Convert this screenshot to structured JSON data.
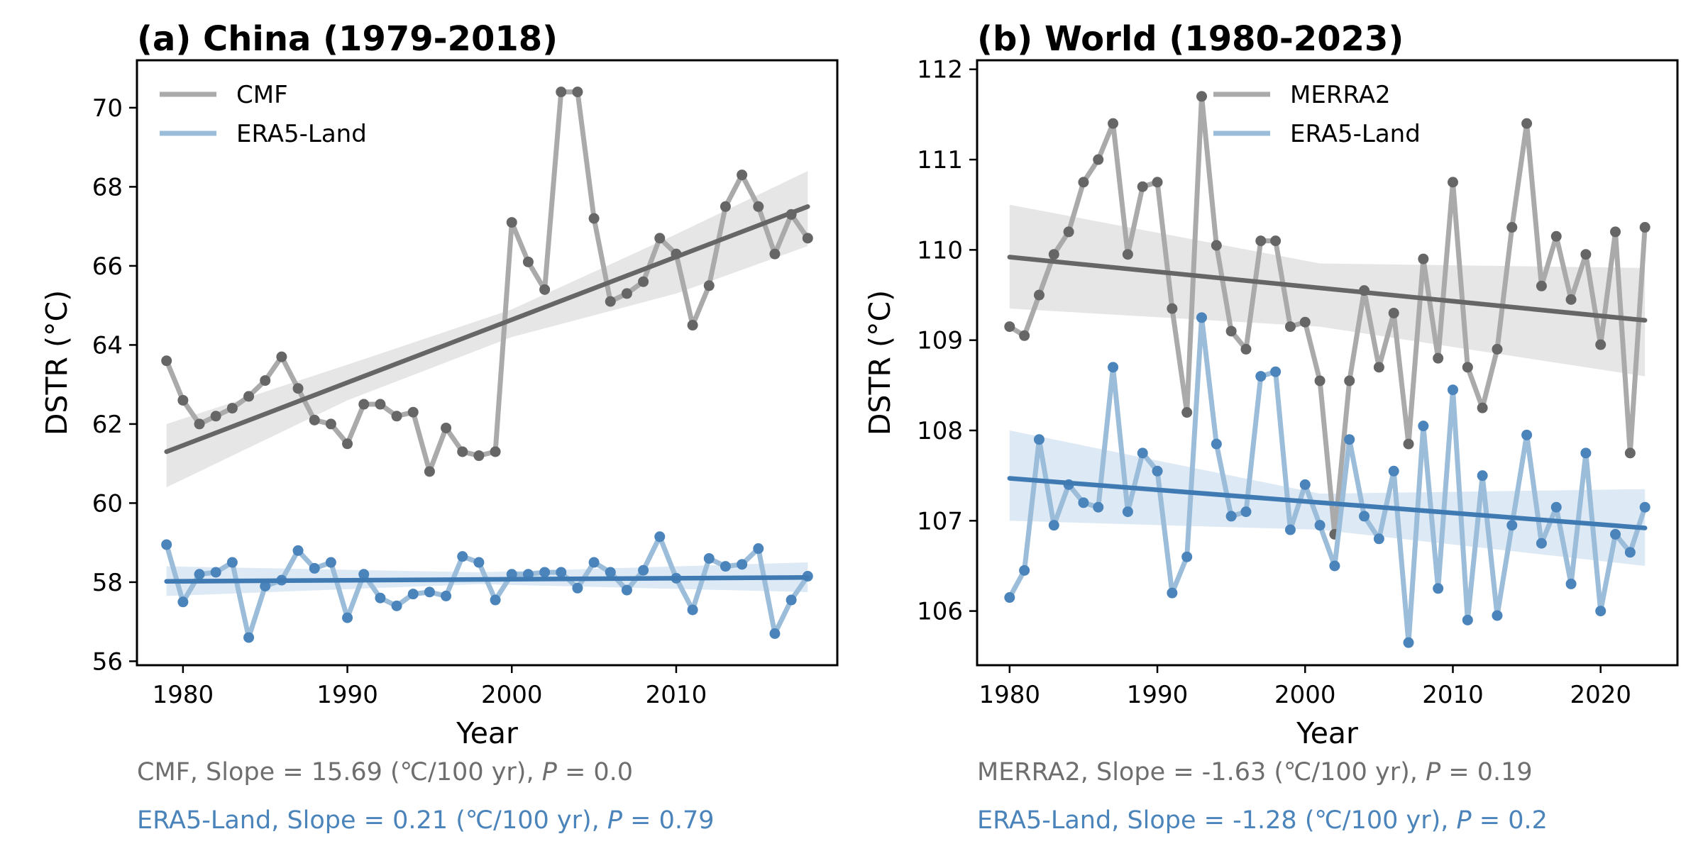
{
  "colors": {
    "cmf_line": "#aaaaaa",
    "cmf_dot": "#666666",
    "cmf_trend": "#666666",
    "band_gray": "#e6e6e6",
    "era_line": "#9bbdda",
    "era_dot": "#4a84bb",
    "era_trend": "#3f7ab3",
    "band_blue": "#dde9f4",
    "stat_gray": "#6e6e6e",
    "stat_blue": "#4a84bb"
  },
  "chart_data": [
    {
      "type": "line",
      "title": "(a) China (1979-2018)",
      "xlabel": "Year",
      "ylabel": "DSTR (°C)",
      "xlim": [
        1977.2,
        2019.8
      ],
      "ylim": [
        55.9,
        71.2
      ],
      "xticks": [
        1980,
        1990,
        2000,
        2010
      ],
      "yticks": [
        56,
        58,
        60,
        62,
        64,
        66,
        68,
        70
      ],
      "legend_position": "top-left",
      "series": [
        {
          "name": "CMF",
          "color_key": "cmf",
          "x": [
            1979,
            1980,
            1981,
            1982,
            1983,
            1984,
            1985,
            1986,
            1987,
            1988,
            1989,
            1990,
            1991,
            1992,
            1993,
            1994,
            1995,
            1996,
            1997,
            1998,
            1999,
            2000,
            2001,
            2002,
            2003,
            2004,
            2005,
            2006,
            2007,
            2008,
            2009,
            2010,
            2011,
            2012,
            2013,
            2014,
            2015,
            2016,
            2017,
            2018
          ],
          "y": [
            63.6,
            62.6,
            62.0,
            62.2,
            62.4,
            62.7,
            63.1,
            63.7,
            62.9,
            62.1,
            62.0,
            61.5,
            62.5,
            62.5,
            62.2,
            62.3,
            60.8,
            61.9,
            61.3,
            61.2,
            61.3,
            67.1,
            66.1,
            65.4,
            70.4,
            70.4,
            67.2,
            65.1,
            65.3,
            65.6,
            66.7,
            66.3,
            64.5,
            65.5,
            67.5,
            68.3,
            67.5,
            66.3,
            67.3,
            66.7
          ],
          "trend": {
            "x": [
              1979,
              2018
            ],
            "y": [
              61.3,
              67.5
            ]
          },
          "band": {
            "x": [
              1979,
              1990,
              2000,
              2010,
              2018
            ],
            "upper": [
              62.0,
              63.5,
              64.9,
              66.8,
              68.4
            ],
            "lower": [
              60.4,
              62.6,
              64.2,
              65.3,
              66.5
            ]
          }
        },
        {
          "name": "ERA5-Land",
          "color_key": "era",
          "x": [
            1979,
            1980,
            1981,
            1982,
            1983,
            1984,
            1985,
            1986,
            1987,
            1988,
            1989,
            1990,
            1991,
            1992,
            1993,
            1994,
            1995,
            1996,
            1997,
            1998,
            1999,
            2000,
            2001,
            2002,
            2003,
            2004,
            2005,
            2006,
            2007,
            2008,
            2009,
            2010,
            2011,
            2012,
            2013,
            2014,
            2015,
            2016,
            2017,
            2018
          ],
          "y": [
            58.95,
            57.5,
            58.2,
            58.25,
            58.5,
            56.6,
            57.9,
            58.05,
            58.8,
            58.35,
            58.5,
            57.1,
            58.2,
            57.6,
            57.4,
            57.7,
            57.75,
            57.65,
            58.65,
            58.5,
            57.55,
            58.2,
            58.2,
            58.25,
            58.25,
            57.85,
            58.5,
            58.25,
            57.8,
            58.3,
            59.15,
            58.1,
            57.3,
            58.6,
            58.4,
            58.45,
            58.85,
            56.7,
            57.55,
            58.15
          ],
          "trend": {
            "x": [
              1979,
              2018
            ],
            "y": [
              58.02,
              58.12
            ]
          },
          "band": {
            "x": [
              1979,
              1998,
              2018
            ],
            "upper": [
              58.4,
              58.25,
              58.5
            ],
            "lower": [
              57.65,
              57.95,
              57.75
            ]
          }
        }
      ],
      "stats": [
        {
          "series": "CMF",
          "text": "CMF, Slope = 15.69 (℃/100 yr), ",
          "p_label": "P",
          "p_text": " = 0.0"
        },
        {
          "series": "ERA5-Land",
          "text": "ERA5-Land, Slope = 0.21 (℃/100 yr), ",
          "p_label": "P",
          "p_text": " = 0.79"
        }
      ]
    },
    {
      "type": "line",
      "title": "(b) World (1980-2023)",
      "xlabel": "Year",
      "ylabel": "DSTR (°C)",
      "xlim": [
        1977.8,
        2025.2
      ],
      "ylim": [
        105.4,
        112.1
      ],
      "xticks": [
        1980,
        1990,
        2000,
        2010,
        2020
      ],
      "yticks": [
        106,
        107,
        108,
        109,
        110,
        111,
        112
      ],
      "legend_position": "top-center",
      "series": [
        {
          "name": "MERRA2",
          "color_key": "cmf",
          "x": [
            1980,
            1981,
            1982,
            1983,
            1984,
            1985,
            1986,
            1987,
            1988,
            1989,
            1990,
            1991,
            1992,
            1993,
            1994,
            1995,
            1996,
            1997,
            1998,
            1999,
            2000,
            2001,
            2002,
            2003,
            2004,
            2005,
            2006,
            2007,
            2008,
            2009,
            2010,
            2011,
            2012,
            2013,
            2014,
            2015,
            2016,
            2017,
            2018,
            2019,
            2020,
            2021,
            2022,
            2023
          ],
          "y": [
            109.15,
            109.05,
            109.5,
            109.95,
            110.2,
            110.75,
            111.0,
            111.4,
            109.95,
            110.7,
            110.75,
            109.35,
            108.2,
            111.7,
            110.05,
            109.1,
            108.9,
            110.1,
            110.1,
            109.15,
            109.2,
            108.55,
            106.85,
            108.55,
            109.55,
            108.7,
            109.3,
            107.85,
            109.9,
            108.8,
            110.75,
            108.7,
            108.25,
            108.9,
            110.25,
            111.4,
            109.6,
            110.15,
            109.45,
            109.95,
            108.95,
            110.2,
            107.75,
            110.25
          ],
          "trend": {
            "x": [
              1980,
              2023
            ],
            "y": [
              109.92,
              109.22
            ]
          },
          "band": {
            "x": [
              1980,
              2001,
              2023
            ],
            "upper": [
              110.5,
              109.85,
              109.8
            ],
            "lower": [
              109.35,
              109.15,
              108.6
            ]
          }
        },
        {
          "name": "ERA5-Land",
          "color_key": "era",
          "x": [
            1980,
            1981,
            1982,
            1983,
            1984,
            1985,
            1986,
            1987,
            1988,
            1989,
            1990,
            1991,
            1992,
            1993,
            1994,
            1995,
            1996,
            1997,
            1998,
            1999,
            2000,
            2001,
            2002,
            2003,
            2004,
            2005,
            2006,
            2007,
            2008,
            2009,
            2010,
            2011,
            2012,
            2013,
            2014,
            2015,
            2016,
            2017,
            2018,
            2019,
            2020,
            2021,
            2022,
            2023
          ],
          "y": [
            106.15,
            106.45,
            107.9,
            106.95,
            107.4,
            107.2,
            107.15,
            108.7,
            107.1,
            107.75,
            107.55,
            106.2,
            106.6,
            109.25,
            107.85,
            107.05,
            107.1,
            108.6,
            108.65,
            106.9,
            107.4,
            106.95,
            106.5,
            107.9,
            107.05,
            106.8,
            107.55,
            105.65,
            108.05,
            106.25,
            108.45,
            105.9,
            107.5,
            105.95,
            106.95,
            107.95,
            106.75,
            107.15,
            106.3,
            107.75,
            106.0,
            106.85,
            106.65,
            107.15
          ],
          "trend": {
            "x": [
              1980,
              2023
            ],
            "y": [
              107.47,
              106.92
            ]
          },
          "band": {
            "x": [
              1980,
              2001,
              2023
            ],
            "upper": [
              108.0,
              107.3,
              107.35
            ],
            "lower": [
              107.0,
              106.9,
              106.5
            ]
          }
        }
      ],
      "stats": [
        {
          "series": "MERRA2",
          "text": "MERRA2, Slope = -1.63 (℃/100 yr), ",
          "p_label": "P",
          "p_text": " = 0.19"
        },
        {
          "series": "ERA5-Land",
          "text": "ERA5-Land, Slope = -1.28 (℃/100 yr), ",
          "p_label": "P",
          "p_text": " = 0.2"
        }
      ]
    }
  ]
}
